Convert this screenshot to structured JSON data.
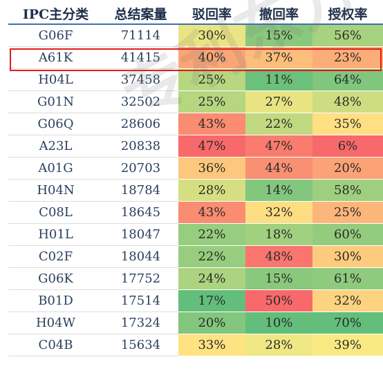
{
  "chart_data": {
    "type": "table",
    "columns": [
      "IPC主分类",
      "总结案量",
      "驳回率",
      "撤回率",
      "授权率"
    ],
    "rows": [
      {
        "ipc": "G06F",
        "total": "71114",
        "rejection": "30%",
        "withdrawal": "15%",
        "grant": "56%"
      },
      {
        "ipc": "A61K",
        "total": "41415",
        "rejection": "40%",
        "withdrawal": "37%",
        "grant": "23%"
      },
      {
        "ipc": "H04L",
        "total": "37458",
        "rejection": "25%",
        "withdrawal": "11%",
        "grant": "64%"
      },
      {
        "ipc": "G01N",
        "total": "32502",
        "rejection": "25%",
        "withdrawal": "27%",
        "grant": "48%"
      },
      {
        "ipc": "G06Q",
        "total": "28606",
        "rejection": "43%",
        "withdrawal": "22%",
        "grant": "35%"
      },
      {
        "ipc": "A23L",
        "total": "20838",
        "rejection": "47%",
        "withdrawal": "47%",
        "grant": "6%"
      },
      {
        "ipc": "A01G",
        "total": "20703",
        "rejection": "36%",
        "withdrawal": "44%",
        "grant": "20%"
      },
      {
        "ipc": "H04N",
        "total": "18784",
        "rejection": "28%",
        "withdrawal": "14%",
        "grant": "58%"
      },
      {
        "ipc": "C08L",
        "total": "18645",
        "rejection": "43%",
        "withdrawal": "32%",
        "grant": "25%"
      },
      {
        "ipc": "H01L",
        "total": "18047",
        "rejection": "22%",
        "withdrawal": "18%",
        "grant": "60%"
      },
      {
        "ipc": "C02F",
        "total": "18044",
        "rejection": "22%",
        "withdrawal": "48%",
        "grant": "30%"
      },
      {
        "ipc": "G06K",
        "total": "17752",
        "rejection": "24%",
        "withdrawal": "15%",
        "grant": "61%"
      },
      {
        "ipc": "B01D",
        "total": "17514",
        "rejection": "17%",
        "withdrawal": "50%",
        "grant": "32%"
      },
      {
        "ipc": "H04W",
        "total": "17324",
        "rejection": "20%",
        "withdrawal": "10%",
        "grant": "70%"
      },
      {
        "ipc": "C04B",
        "total": "15634",
        "rejection": "33%",
        "withdrawal": "28%",
        "grant": "39%"
      }
    ],
    "highlighted_row": "A61K",
    "color_scale": {
      "low": "#63be7b",
      "mid": "#ffeb84",
      "high": "#f8696b"
    }
  },
  "watermark": "专利东方"
}
